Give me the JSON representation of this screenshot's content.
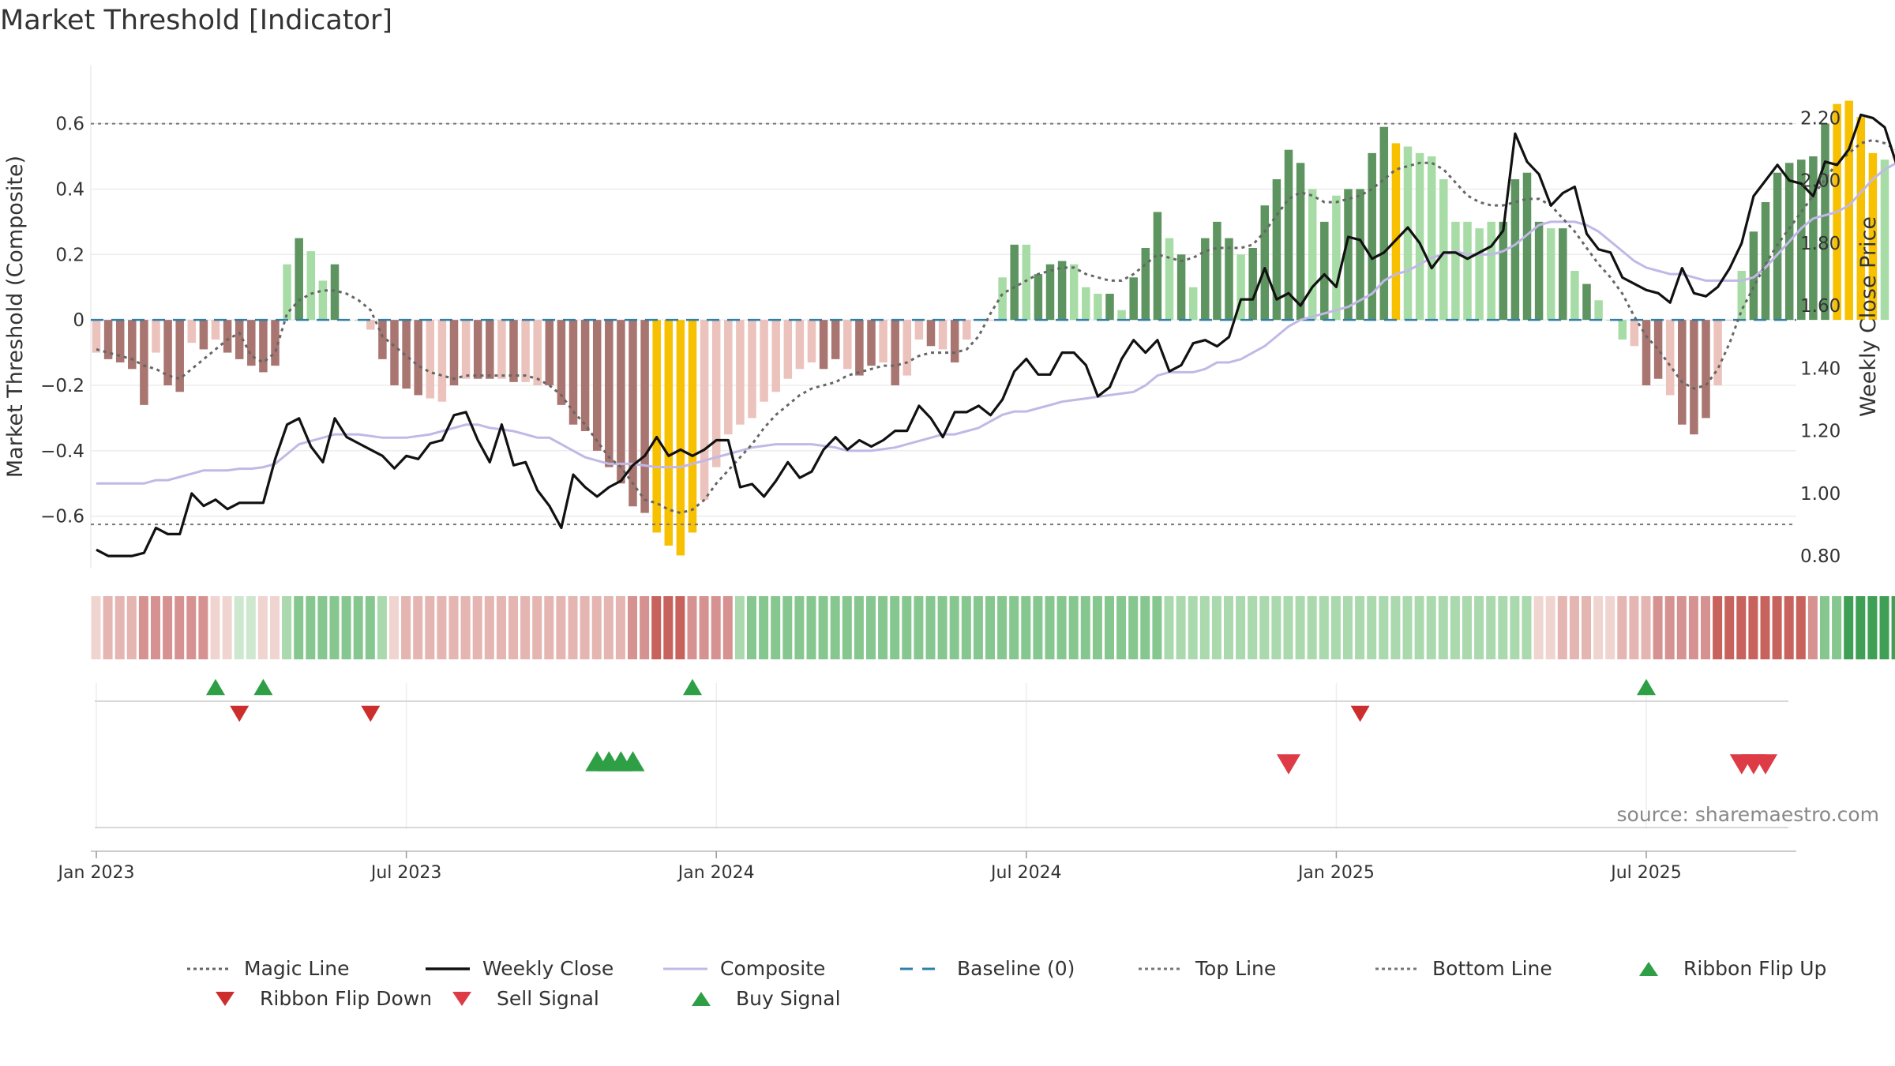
{
  "title": "Market Threshold [Indicator]",
  "source": "source: sharemaestro.com",
  "colors": {
    "bar_dark_red": "#a87570",
    "bar_light_red": "#ecc2bc",
    "bar_dark_green": "#5e9460",
    "bar_light_green": "#a8dca6",
    "bar_yellow": "#f7c000",
    "weekly_close": "#111111",
    "composite": "#c1b8e6",
    "magic": "#666666",
    "baseline": "#2f7fa8",
    "buy": "#2e9f45",
    "sell": "#dd3b46",
    "flip_down": "#cc2e2e"
  },
  "legend": [
    {
      "label": "Magic Line",
      "icon": "dotted-line"
    },
    {
      "label": "Weekly Close",
      "icon": "solid-line"
    },
    {
      "label": "Composite",
      "icon": "solid-line"
    },
    {
      "label": "Baseline (0)",
      "icon": "dashed-line"
    },
    {
      "label": "Top Line",
      "icon": "dotted-line"
    },
    {
      "label": "Bottom Line",
      "icon": "dotted-line"
    },
    {
      "label": "Ribbon Flip Up",
      "icon": "triangle-up"
    },
    {
      "label": "Ribbon Flip Down",
      "icon": "triangle-down"
    },
    {
      "label": "Sell Signal",
      "icon": "triangle-down"
    },
    {
      "label": "Buy Signal",
      "icon": "triangle-up"
    }
  ],
  "chart_data": {
    "type": "bar",
    "ylabel": "Market Threshold (Composite)",
    "ylabel_right": "Weekly Close Price",
    "ylim": [
      -0.76,
      0.78
    ],
    "ylim_right": [
      0.76,
      2.37
    ],
    "yticks": [
      -0.6,
      -0.4,
      -0.2,
      0,
      0.2,
      0.4,
      0.6
    ],
    "ytick_labels": [
      "−0.6",
      "−0.4",
      "−0.2",
      "0",
      "0.2",
      "0.4",
      "0.6"
    ],
    "yticks_right": [
      0.8,
      1.0,
      1.2,
      1.4,
      1.6,
      1.8,
      2.0,
      2.2
    ],
    "ytick_labels_right": [
      "0.80",
      "1.00",
      "1.20",
      "1.40",
      "1.60",
      "1.80",
      "2.00",
      "2.20"
    ],
    "xticks": [
      0,
      26,
      52,
      78,
      104,
      130
    ],
    "xtick_labels": [
      "Jan 2023",
      "Jul 2023",
      "Jan 2024",
      "Jul 2024",
      "Jan 2025",
      "Jul 2025"
    ],
    "top_line": 0.6,
    "bottom_line": -0.625,
    "baseline": 0,
    "grid": true,
    "legend_position": "bottom",
    "composite_bars": [
      -0.1,
      -0.12,
      -0.13,
      -0.15,
      -0.26,
      -0.1,
      -0.2,
      -0.22,
      -0.07,
      -0.09,
      -0.06,
      -0.1,
      -0.12,
      -0.14,
      -0.16,
      -0.14,
      0.17,
      0.25,
      0.21,
      0.12,
      0.17,
      0,
      0,
      -0.03,
      -0.12,
      -0.2,
      -0.21,
      -0.23,
      -0.24,
      -0.25,
      -0.2,
      -0.18,
      -0.18,
      -0.18,
      -0.18,
      -0.19,
      -0.19,
      -0.2,
      -0.2,
      -0.26,
      -0.32,
      -0.34,
      -0.4,
      -0.45,
      -0.5,
      -0.57,
      -0.59,
      -0.65,
      -0.69,
      -0.72,
      -0.65,
      -0.55,
      -0.45,
      -0.35,
      -0.32,
      -0.3,
      -0.25,
      -0.22,
      -0.18,
      -0.15,
      -0.13,
      -0.15,
      -0.12,
      -0.15,
      -0.17,
      -0.14,
      -0.13,
      -0.2,
      -0.17,
      -0.06,
      -0.08,
      -0.09,
      -0.13,
      -0.06,
      0,
      0,
      0.13,
      0.23,
      0.23,
      0.14,
      0.17,
      0.18,
      0.17,
      0.1,
      0.08,
      0.08,
      0.03,
      0.13,
      0.22,
      0.33,
      0.25,
      0.2,
      0.1,
      0.25,
      0.3,
      0.25,
      0.2,
      0.22,
      0.35,
      0.43,
      0.52,
      0.48,
      0.4,
      0.3,
      0.38,
      0.4,
      0.4,
      0.51,
      0.59,
      0.54,
      0.53,
      0.51,
      0.5,
      0.43,
      0.3,
      0.3,
      0.28,
      0.3,
      0.3,
      0.43,
      0.45,
      0.3,
      0.28,
      0.28,
      0.15,
      0.11,
      0.06,
      0,
      -0.06,
      -0.08,
      -0.2,
      -0.18,
      -0.23,
      -0.32,
      -0.35,
      -0.3,
      -0.2,
      0,
      0.15,
      0.27,
      0.36,
      0.45,
      0.48,
      0.49,
      0.5,
      0.6,
      0.66,
      0.67,
      0.62,
      0.51,
      0.49
    ],
    "bar_colors": [
      "lr",
      "dr",
      "dr",
      "dr",
      "dr",
      "lr",
      "dr",
      "dr",
      "lr",
      "dr",
      "lr",
      "dr",
      "dr",
      "dr",
      "dr",
      "dr",
      "lg",
      "dg",
      "lg",
      "lg",
      "dg",
      "lg",
      "lg",
      "lr",
      "dr",
      "dr",
      "dr",
      "dr",
      "lr",
      "lr",
      "dr",
      "lr",
      "dr",
      "dr",
      "lr",
      "dr",
      "lr",
      "lr",
      "dr",
      "dr",
      "dr",
      "dr",
      "dr",
      "dr",
      "dr",
      "dr",
      "dr",
      "y",
      "y",
      "y",
      "y",
      "lr",
      "lr",
      "lr",
      "lr",
      "lr",
      "lr",
      "lr",
      "lr",
      "lr",
      "lr",
      "dr",
      "dr",
      "lr",
      "dr",
      "dr",
      "lr",
      "dr",
      "lr",
      "lr",
      "dr",
      "lr",
      "dr",
      "lr",
      "lr",
      "lr",
      "lg",
      "dg",
      "lg",
      "dg",
      "dg",
      "dg",
      "lg",
      "lg",
      "lg",
      "dg",
      "lg",
      "dg",
      "dg",
      "dg",
      "lg",
      "dg",
      "lg",
      "dg",
      "dg",
      "dg",
      "lg",
      "dg",
      "dg",
      "dg",
      "dg",
      "dg",
      "lg",
      "dg",
      "lg",
      "dg",
      "dg",
      "dg",
      "dg",
      "y",
      "lg",
      "lg",
      "lg",
      "lg",
      "lg",
      "lg",
      "lg",
      "lg",
      "dg",
      "dg",
      "dg",
      "dg",
      "lg",
      "dg",
      "lg",
      "dg",
      "lg",
      "lg",
      "lg",
      "lr",
      "dr",
      "dr",
      "lr",
      "dr",
      "dr",
      "dr",
      "lr",
      "lr",
      "lg",
      "dg",
      "dg",
      "dg",
      "dg",
      "dg",
      "dg",
      "dg",
      "y",
      "y",
      "y",
      "y",
      "lg",
      "lg"
    ],
    "magic_line": [
      -0.09,
      -0.1,
      -0.11,
      -0.12,
      -0.14,
      -0.15,
      -0.17,
      -0.18,
      -0.15,
      -0.12,
      -0.09,
      -0.06,
      -0.04,
      -0.11,
      -0.13,
      -0.1,
      0.02,
      0.06,
      0.08,
      0.09,
      0.09,
      0.08,
      0.06,
      0.03,
      -0.05,
      -0.08,
      -0.11,
      -0.14,
      -0.16,
      -0.17,
      -0.18,
      -0.17,
      -0.17,
      -0.17,
      -0.17,
      -0.17,
      -0.17,
      -0.18,
      -0.2,
      -0.23,
      -0.28,
      -0.32,
      -0.37,
      -0.42,
      -0.45,
      -0.5,
      -0.55,
      -0.56,
      -0.58,
      -0.59,
      -0.58,
      -0.55,
      -0.5,
      -0.46,
      -0.42,
      -0.38,
      -0.33,
      -0.29,
      -0.26,
      -0.23,
      -0.21,
      -0.2,
      -0.19,
      -0.17,
      -0.16,
      -0.15,
      -0.14,
      -0.14,
      -0.13,
      -0.11,
      -0.1,
      -0.1,
      -0.1,
      -0.09,
      -0.05,
      0.02,
      0.08,
      0.1,
      0.12,
      0.14,
      0.15,
      0.16,
      0.16,
      0.14,
      0.13,
      0.12,
      0.12,
      0.14,
      0.17,
      0.2,
      0.19,
      0.18,
      0.19,
      0.21,
      0.22,
      0.22,
      0.22,
      0.23,
      0.27,
      0.32,
      0.37,
      0.39,
      0.38,
      0.36,
      0.36,
      0.37,
      0.38,
      0.4,
      0.43,
      0.46,
      0.47,
      0.48,
      0.48,
      0.46,
      0.42,
      0.38,
      0.36,
      0.35,
      0.35,
      0.36,
      0.37,
      0.37,
      0.35,
      0.31,
      0.27,
      0.22,
      0.17,
      0.13,
      0.08,
      0.01,
      -0.05,
      -0.09,
      -0.14,
      -0.19,
      -0.21,
      -0.2,
      -0.15,
      -0.07,
      0.03,
      0.1,
      0.17,
      0.23,
      0.28,
      0.33,
      0.38,
      0.43,
      0.48,
      0.51,
      0.54,
      0.55,
      0.54,
      0.52
    ],
    "composite_line": [
      -0.5,
      -0.5,
      -0.5,
      -0.5,
      -0.5,
      -0.49,
      -0.49,
      -0.48,
      -0.47,
      -0.46,
      -0.46,
      -0.46,
      -0.455,
      -0.455,
      -0.45,
      -0.44,
      -0.41,
      -0.38,
      -0.37,
      -0.36,
      -0.35,
      -0.35,
      -0.35,
      -0.355,
      -0.36,
      -0.36,
      -0.36,
      -0.355,
      -0.35,
      -0.34,
      -0.33,
      -0.32,
      -0.32,
      -0.33,
      -0.335,
      -0.34,
      -0.35,
      -0.36,
      -0.36,
      -0.38,
      -0.4,
      -0.42,
      -0.43,
      -0.44,
      -0.44,
      -0.44,
      -0.445,
      -0.45,
      -0.45,
      -0.45,
      -0.44,
      -0.43,
      -0.42,
      -0.41,
      -0.4,
      -0.39,
      -0.385,
      -0.38,
      -0.38,
      -0.38,
      -0.38,
      -0.385,
      -0.39,
      -0.4,
      -0.4,
      -0.4,
      -0.395,
      -0.39,
      -0.38,
      -0.37,
      -0.36,
      -0.35,
      -0.35,
      -0.34,
      -0.33,
      -0.31,
      -0.29,
      -0.28,
      -0.28,
      -0.27,
      -0.26,
      -0.25,
      -0.245,
      -0.24,
      -0.235,
      -0.23,
      -0.225,
      -0.22,
      -0.2,
      -0.17,
      -0.16,
      -0.16,
      -0.16,
      -0.15,
      -0.13,
      -0.13,
      -0.12,
      -0.1,
      -0.08,
      -0.05,
      -0.02,
      0,
      0.01,
      0.02,
      0.03,
      0.04,
      0.06,
      0.08,
      0.12,
      0.14,
      0.15,
      0.17,
      0.19,
      0.2,
      0.21,
      0.2,
      0.2,
      0.2,
      0.21,
      0.23,
      0.26,
      0.29,
      0.3,
      0.3,
      0.3,
      0.29,
      0.27,
      0.24,
      0.21,
      0.18,
      0.16,
      0.15,
      0.14,
      0.14,
      0.13,
      0.12,
      0.12,
      0.12,
      0.12,
      0.13,
      0.16,
      0.2,
      0.24,
      0.28,
      0.31,
      0.32,
      0.33,
      0.35,
      0.39,
      0.43,
      0.46,
      0.48,
      0.47,
      0.46
    ],
    "weekly_close": [
      0.82,
      0.8,
      0.8,
      0.8,
      0.81,
      0.89,
      0.87,
      0.87,
      1.0,
      0.96,
      0.98,
      0.95,
      0.97,
      0.97,
      0.97,
      1.11,
      1.22,
      1.24,
      1.15,
      1.1,
      1.24,
      1.18,
      1.16,
      1.14,
      1.12,
      1.08,
      1.12,
      1.11,
      1.16,
      1.17,
      1.25,
      1.26,
      1.17,
      1.1,
      1.22,
      1.09,
      1.1,
      1.01,
      0.96,
      0.89,
      1.06,
      1.02,
      0.99,
      1.02,
      1.04,
      1.09,
      1.12,
      1.18,
      1.12,
      1.14,
      1.12,
      1.14,
      1.17,
      1.17,
      1.02,
      1.03,
      0.99,
      1.04,
      1.1,
      1.05,
      1.07,
      1.14,
      1.18,
      1.14,
      1.17,
      1.15,
      1.17,
      1.2,
      1.2,
      1.28,
      1.24,
      1.18,
      1.26,
      1.26,
      1.28,
      1.25,
      1.3,
      1.39,
      1.43,
      1.38,
      1.38,
      1.45,
      1.45,
      1.41,
      1.31,
      1.34,
      1.43,
      1.49,
      1.45,
      1.49,
      1.39,
      1.41,
      1.48,
      1.49,
      1.47,
      1.5,
      1.62,
      1.62,
      1.72,
      1.62,
      1.64,
      1.6,
      1.66,
      1.7,
      1.66,
      1.82,
      1.81,
      1.75,
      1.77,
      1.81,
      1.85,
      1.8,
      1.72,
      1.77,
      1.77,
      1.75,
      1.77,
      1.79,
      1.84,
      2.15,
      2.06,
      2.02,
      1.92,
      1.96,
      1.98,
      1.83,
      1.78,
      1.77,
      1.69,
      1.67,
      1.65,
      1.64,
      1.61,
      1.72,
      1.64,
      1.63,
      1.66,
      1.72,
      1.8,
      1.95,
      2.0,
      2.05,
      2.0,
      1.99,
      1.95,
      2.06,
      2.05,
      2.1,
      2.21,
      2.2,
      2.17,
      2.05,
      2.17
    ],
    "ribbon": [
      -1,
      -2,
      -2,
      -2,
      -3,
      -3,
      -3,
      -3,
      -3,
      -3,
      -1,
      -1,
      1,
      1,
      -1,
      -1,
      2,
      3,
      3,
      3,
      3,
      3,
      3,
      3,
      2,
      -1,
      -2,
      -2,
      -2,
      -2,
      -2,
      -2,
      -2,
      -2,
      -2,
      -2,
      -2,
      -2,
      -2,
      -2,
      -2,
      -2,
      -2,
      -2,
      -2,
      -3,
      -3,
      -4,
      -4,
      -4,
      -3,
      -3,
      -3,
      -3,
      2,
      3,
      3,
      3,
      3,
      3,
      3,
      3,
      3,
      3,
      3,
      3,
      3,
      3,
      3,
      3,
      3,
      3,
      3,
      3,
      3,
      3,
      3,
      3,
      3,
      3,
      3,
      3,
      3,
      3,
      3,
      3,
      3,
      3,
      3,
      3,
      2,
      2,
      2,
      2,
      2,
      2,
      2,
      2,
      2,
      2,
      2,
      2,
      2,
      2,
      2,
      2,
      2,
      2,
      2,
      2,
      2,
      2,
      2,
      2,
      2,
      2,
      2,
      2,
      2,
      2,
      2,
      -1,
      -1,
      -2,
      -2,
      -2,
      -1,
      -1,
      -2,
      -2,
      -2,
      -3,
      -3,
      -3,
      -3,
      -3,
      -4,
      -4,
      -4,
      -4,
      -4,
      -4,
      -4,
      -4,
      -3,
      3,
      3,
      4,
      4,
      4,
      4,
      4,
      4,
      4,
      4,
      4,
      4,
      4,
      3
    ],
    "ribbon_flip_up_weeks": [
      10,
      14,
      50,
      130
    ],
    "ribbon_flip_down_weeks": [
      12,
      23,
      106
    ],
    "buy_signal_weeks": [
      42,
      43,
      44,
      45
    ],
    "sell_signal_weeks": [
      100,
      138,
      139,
      140
    ]
  }
}
